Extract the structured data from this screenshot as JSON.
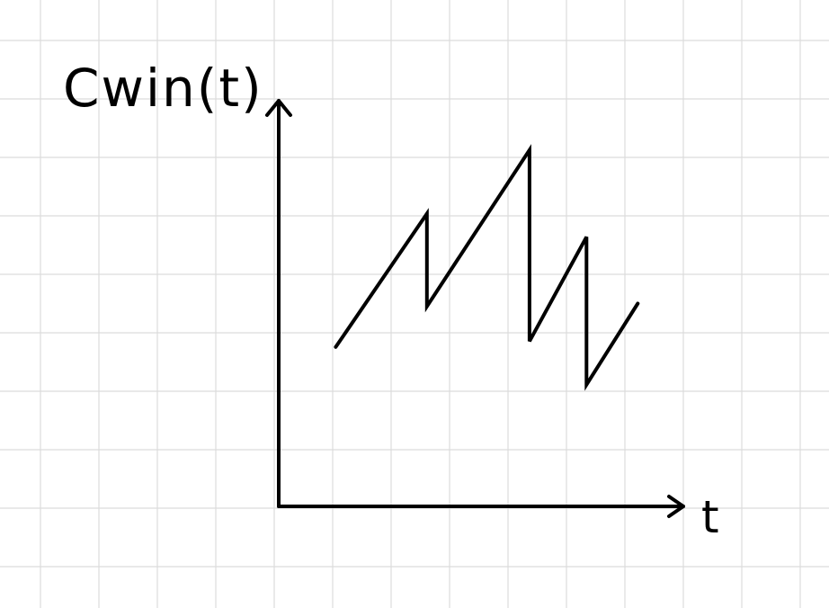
{
  "chart_data": {
    "type": "line",
    "title": "",
    "xlabel": "t",
    "ylabel": "Cwin(t)",
    "grid": true,
    "axis_ticks": false,
    "series": [
      {
        "x": [
          1.0,
          2.6,
          2.6,
          4.4,
          4.4,
          5.4,
          5.4,
          6.3
        ],
        "values": [
          2.75,
          5.05,
          3.45,
          6.15,
          2.85,
          4.65,
          2.1,
          3.5
        ]
      }
    ],
    "xlim": [
      0,
      7.1
    ],
    "ylim": [
      0,
      7.0
    ],
    "colors": {
      "ink": "#000000",
      "grid": "#dcdcdc",
      "background": "#ffffff"
    }
  }
}
